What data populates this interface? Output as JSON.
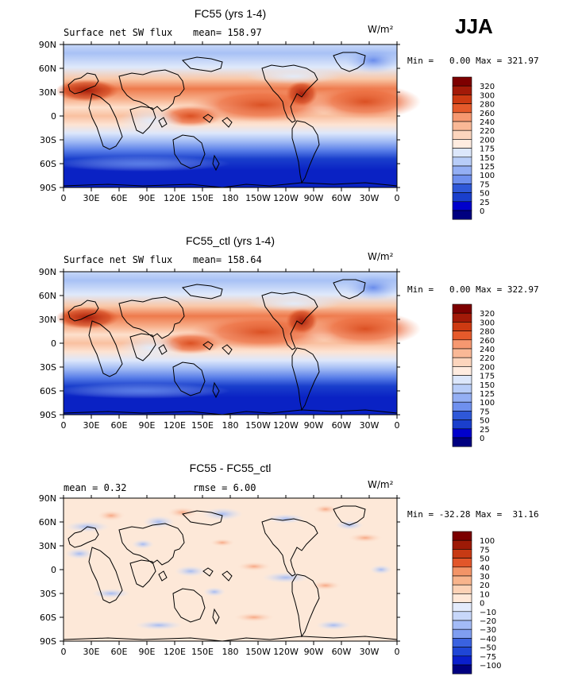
{
  "season": "JJA",
  "colors": {
    "abs": [
      "#000080",
      "#0000cc",
      "#1a3fcc",
      "#2f58d8",
      "#4a72e6",
      "#6f90ee",
      "#94aff4",
      "#b8cdf8",
      "#dce7fb",
      "#ffece0",
      "#fcd5bd",
      "#f9b896",
      "#f69870",
      "#ef7a4f",
      "#e55a2b",
      "#cd3a12",
      "#a31a08",
      "#7d0000"
    ],
    "diff": [
      "#000080",
      "#0a1fcc",
      "#1f46d6",
      "#3a62e0",
      "#5c82ea",
      "#7f9ef1",
      "#a3bbf6",
      "#c7d7fa",
      "#e3ebfc",
      "#ffe8d8",
      "#fcd2b6",
      "#f8b48c",
      "#f39467",
      "#ec7445",
      "#e2562a",
      "#c73a14",
      "#9d1a06",
      "#7b0000"
    ]
  },
  "panels": [
    {
      "title": "FC55 (yrs 1-4)",
      "left_text": "Surface net SW flux",
      "mid_text": "mean= 158.97",
      "units": "W/m²",
      "minmax": "Min =   0.00 Max = 321.97",
      "x_ticks": [
        "0",
        "30E",
        "60E",
        "90E",
        "120E",
        "150E",
        "180",
        "150W",
        "120W",
        "90W",
        "60W",
        "30W",
        "0"
      ],
      "y_ticks": [
        "90N",
        "60N",
        "30N",
        "0",
        "30S",
        "60S",
        "90S"
      ],
      "legend_labels": [
        "320",
        "300",
        "280",
        "260",
        "240",
        "220",
        "200",
        "175",
        "150",
        "125",
        "100",
        "75",
        "50",
        "25",
        "0"
      ]
    },
    {
      "title": "FC55_ctl (yrs 1-4)",
      "left_text": "Surface net SW flux",
      "mid_text": "mean= 158.64",
      "units": "W/m²",
      "minmax": "Min =   0.00 Max = 322.97",
      "x_ticks": [
        "0",
        "30E",
        "60E",
        "90E",
        "120E",
        "150E",
        "180",
        "150W",
        "120W",
        "90W",
        "60W",
        "30W",
        "0"
      ],
      "y_ticks": [
        "90N",
        "60N",
        "30N",
        "0",
        "30S",
        "60S",
        "90S"
      ],
      "legend_labels": [
        "320",
        "300",
        "280",
        "260",
        "240",
        "220",
        "200",
        "175",
        "150",
        "125",
        "100",
        "75",
        "50",
        "25",
        "0"
      ]
    },
    {
      "title": "FC55 - FC55_ctl",
      "left_text": "mean =    0.32",
      "mid_text": "rmse =    6.00",
      "units": "W/m²",
      "minmax": "Min = -32.28 Max =  31.16",
      "x_ticks": [
        "0",
        "30E",
        "60E",
        "90E",
        "120E",
        "150E",
        "180",
        "150W",
        "120W",
        "90W",
        "60W",
        "30W",
        "0"
      ],
      "y_ticks": [
        "90N",
        "60N",
        "30N",
        "0",
        "30S",
        "60S",
        "90S"
      ],
      "legend_labels": [
        "100",
        "75",
        "50",
        "40",
        "30",
        "20",
        "10",
        "0",
        "−10",
        "−20",
        "−30",
        "−40",
        "−50",
        "−75",
        "−100"
      ]
    }
  ],
  "chart_data": [
    {
      "type": "heatmap",
      "title": "FC55 (yrs 1-4)",
      "variable": "Surface net SW flux",
      "units": "W/m²",
      "season": "JJA",
      "mean": 158.97,
      "min": 0.0,
      "max": 321.97,
      "xlim": [
        0,
        360
      ],
      "ylim": [
        -90,
        90
      ],
      "levels": [
        0,
        25,
        50,
        75,
        100,
        125,
        150,
        175,
        200,
        220,
        240,
        260,
        280,
        300,
        320
      ],
      "zonal_profile": [
        {
          "lat": 85,
          "value": 140
        },
        {
          "lat": 75,
          "value": 165
        },
        {
          "lat": 60,
          "value": 175
        },
        {
          "lat": 45,
          "value": 225
        },
        {
          "lat": 30,
          "value": 255
        },
        {
          "lat": 20,
          "value": 240
        },
        {
          "lat": 10,
          "value": 205
        },
        {
          "lat": 0,
          "value": 220
        },
        {
          "lat": -10,
          "value": 205
        },
        {
          "lat": -20,
          "value": 175
        },
        {
          "lat": -30,
          "value": 125
        },
        {
          "lat": -40,
          "value": 75
        },
        {
          "lat": -50,
          "value": 35
        },
        {
          "lat": -60,
          "value": 12
        },
        {
          "lat": -75,
          "value": 2
        },
        {
          "lat": -85,
          "value": 0
        }
      ]
    },
    {
      "type": "heatmap",
      "title": "FC55_ctl (yrs 1-4)",
      "variable": "Surface net SW flux",
      "units": "W/m²",
      "season": "JJA",
      "mean": 158.64,
      "min": 0.0,
      "max": 322.97,
      "xlim": [
        0,
        360
      ],
      "ylim": [
        -90,
        90
      ],
      "levels": [
        0,
        25,
        50,
        75,
        100,
        125,
        150,
        175,
        200,
        220,
        240,
        260,
        280,
        300,
        320
      ],
      "zonal_profile": [
        {
          "lat": 85,
          "value": 140
        },
        {
          "lat": 75,
          "value": 165
        },
        {
          "lat": 60,
          "value": 175
        },
        {
          "lat": 45,
          "value": 225
        },
        {
          "lat": 30,
          "value": 255
        },
        {
          "lat": 20,
          "value": 240
        },
        {
          "lat": 10,
          "value": 205
        },
        {
          "lat": 0,
          "value": 220
        },
        {
          "lat": -10,
          "value": 205
        },
        {
          "lat": -20,
          "value": 175
        },
        {
          "lat": -30,
          "value": 125
        },
        {
          "lat": -40,
          "value": 75
        },
        {
          "lat": -50,
          "value": 35
        },
        {
          "lat": -60,
          "value": 12
        },
        {
          "lat": -75,
          "value": 2
        },
        {
          "lat": -85,
          "value": 0
        }
      ]
    },
    {
      "type": "heatmap",
      "title": "FC55 - FC55_ctl",
      "units": "W/m²",
      "season": "JJA",
      "mean": 0.32,
      "rmse": 6.0,
      "min": -32.28,
      "max": 31.16,
      "xlim": [
        0,
        360
      ],
      "ylim": [
        -90,
        90
      ],
      "levels": [
        -100,
        -75,
        -50,
        -40,
        -30,
        -20,
        -10,
        0,
        10,
        20,
        30,
        40,
        50,
        75,
        100
      ]
    }
  ]
}
